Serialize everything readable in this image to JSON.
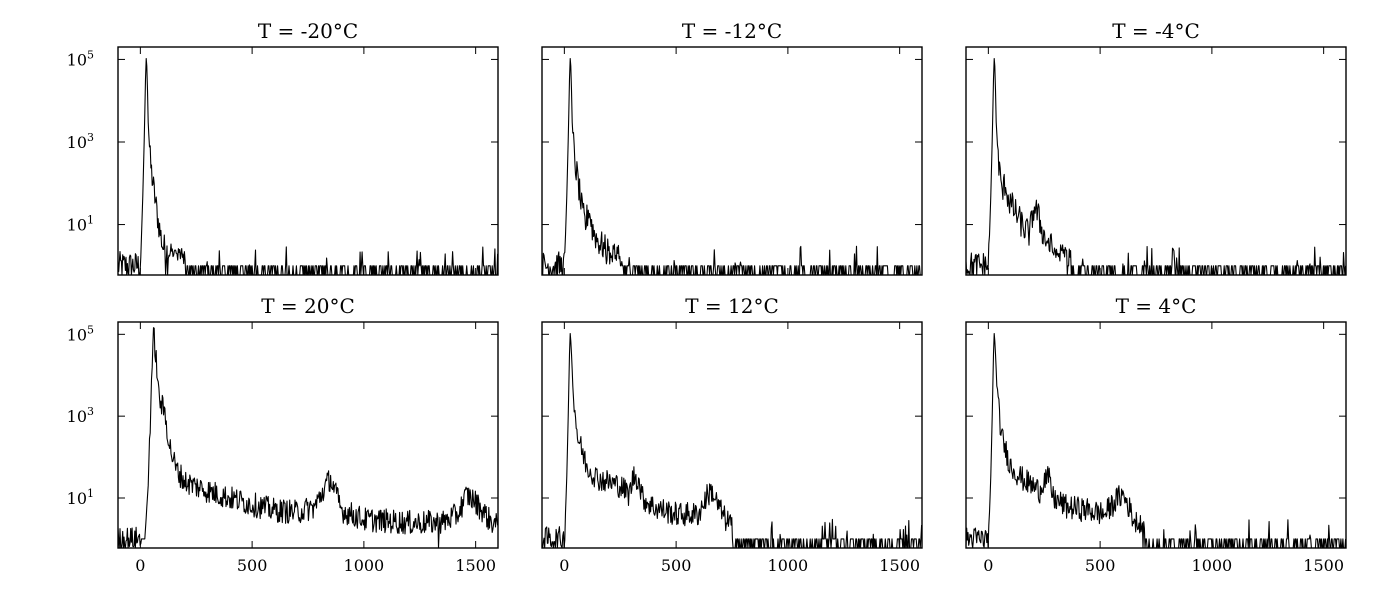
{
  "chart_data": [
    {
      "type": "line",
      "title": "T = -20°C",
      "xlabel": "",
      "ylabel": "",
      "xlim": [
        -100,
        1600
      ],
      "ylim": [
        0.6,
        200000
      ],
      "yscale": "log",
      "xticks": [
        0,
        500,
        1000,
        1500
      ],
      "yticks": [
        {
          "base": "10",
          "exp": "1",
          "value": 10
        },
        {
          "base": "10",
          "exp": "3",
          "value": 1000
        },
        {
          "base": "10",
          "exp": "5",
          "value": 100000
        }
      ],
      "show_xticklabels": false,
      "show_yticklabels": true,
      "series": [
        {
          "points": [
            [
              -100,
              1
            ],
            [
              0,
              1
            ],
            [
              10,
              30
            ],
            [
              20,
              5000
            ],
            [
              25,
              120000
            ],
            [
              30,
              60000
            ],
            [
              35,
              3000
            ],
            [
              45,
              300
            ],
            [
              60,
              70
            ],
            [
              80,
              12
            ],
            [
              100,
              3
            ],
            [
              130,
              2
            ],
            [
              180,
              1.5
            ],
            [
              250,
              1
            ],
            [
              400,
              1
            ],
            [
              600,
              1
            ],
            [
              800,
              1
            ],
            [
              1000,
              1
            ],
            [
              1200,
              1
            ],
            [
              1400,
              1
            ],
            [
              1600,
              1
            ]
          ],
          "noise": 0.35,
          "floor": 1,
          "sparse_after": 200
        }
      ]
    },
    {
      "type": "line",
      "title": "T = -12°C",
      "xlabel": "",
      "ylabel": "",
      "xlim": [
        -100,
        1600
      ],
      "ylim": [
        0.6,
        200000
      ],
      "yscale": "log",
      "xticks": [
        0,
        500,
        1000,
        1500
      ],
      "yticks": [
        {
          "base": "10",
          "exp": "1",
          "value": 10
        },
        {
          "base": "10",
          "exp": "3",
          "value": 1000
        },
        {
          "base": "10",
          "exp": "5",
          "value": 100000
        }
      ],
      "show_xticklabels": false,
      "show_yticklabels": false,
      "series": [
        {
          "points": [
            [
              -100,
              1
            ],
            [
              0,
              1
            ],
            [
              10,
              30
            ],
            [
              20,
              5000
            ],
            [
              25,
              120000
            ],
            [
              30,
              60000
            ],
            [
              35,
              3000
            ],
            [
              45,
              400
            ],
            [
              60,
              120
            ],
            [
              80,
              20
            ],
            [
              95,
              10
            ],
            [
              110,
              25
            ],
            [
              125,
              8
            ],
            [
              150,
              4
            ],
            [
              200,
              2
            ],
            [
              300,
              1.5
            ],
            [
              500,
              1
            ],
            [
              800,
              1
            ],
            [
              1000,
              1
            ],
            [
              1200,
              1
            ],
            [
              1600,
              1
            ]
          ],
          "noise": 0.35,
          "floor": 1,
          "sparse_after": 250
        }
      ]
    },
    {
      "type": "line",
      "title": "T = -4°C",
      "xlabel": "",
      "ylabel": "",
      "xlim": [
        -100,
        1600
      ],
      "ylim": [
        0.6,
        200000
      ],
      "yscale": "log",
      "xticks": [
        0,
        500,
        1000,
        1500
      ],
      "yticks": [
        {
          "base": "10",
          "exp": "1",
          "value": 10
        },
        {
          "base": "10",
          "exp": "3",
          "value": 1000
        },
        {
          "base": "10",
          "exp": "5",
          "value": 100000
        }
      ],
      "show_xticklabels": false,
      "show_yticklabels": false,
      "series": [
        {
          "points": [
            [
              -100,
              1
            ],
            [
              0,
              1
            ],
            [
              10,
              30
            ],
            [
              20,
              5000
            ],
            [
              25,
              120000
            ],
            [
              30,
              60000
            ],
            [
              35,
              3000
            ],
            [
              45,
              400
            ],
            [
              55,
              100
            ],
            [
              65,
              60
            ],
            [
              75,
              110
            ],
            [
              90,
              40
            ],
            [
              120,
              20
            ],
            [
              160,
              8
            ],
            [
              185,
              6
            ],
            [
              205,
              28
            ],
            [
              220,
              18
            ],
            [
              250,
              5
            ],
            [
              300,
              2
            ],
            [
              400,
              1.5
            ],
            [
              600,
              1
            ],
            [
              900,
              1
            ],
            [
              1200,
              1
            ],
            [
              1600,
              1
            ]
          ],
          "noise": 0.35,
          "floor": 1,
          "sparse_after": 350
        }
      ]
    },
    {
      "type": "line",
      "title": "T = 20°C",
      "xlabel": "",
      "ylabel": "",
      "xlim": [
        -100,
        1600
      ],
      "ylim": [
        0.6,
        200000
      ],
      "yscale": "log",
      "xticks": [
        0,
        500,
        1000,
        1500
      ],
      "yticks": [
        {
          "base": "10",
          "exp": "1",
          "value": 10
        },
        {
          "base": "10",
          "exp": "3",
          "value": 1000
        },
        {
          "base": "10",
          "exp": "5",
          "value": 100000
        }
      ],
      "show_xticklabels": true,
      "show_yticklabels": true,
      "series": [
        {
          "points": [
            [
              -100,
              1
            ],
            [
              20,
              1
            ],
            [
              35,
              20
            ],
            [
              50,
              8000
            ],
            [
              60,
              100000
            ],
            [
              70,
              30000
            ],
            [
              80,
              4000
            ],
            [
              95,
              1800
            ],
            [
              110,
              1200
            ],
            [
              130,
              200
            ],
            [
              160,
              50
            ],
            [
              200,
              25
            ],
            [
              300,
              15
            ],
            [
              400,
              10
            ],
            [
              500,
              7
            ],
            [
              600,
              5
            ],
            [
              700,
              4.5
            ],
            [
              780,
              6
            ],
            [
              830,
              20
            ],
            [
              850,
              30
            ],
            [
              870,
              15
            ],
            [
              900,
              5
            ],
            [
              1000,
              3
            ],
            [
              1200,
              2.5
            ],
            [
              1350,
              2.5
            ],
            [
              1420,
              4
            ],
            [
              1460,
              12
            ],
            [
              1490,
              9
            ],
            [
              1530,
              5
            ],
            [
              1560,
              3
            ],
            [
              1600,
              2
            ]
          ],
          "noise": 0.3,
          "floor": 1,
          "sparse_after": 2000
        }
      ]
    },
    {
      "type": "line",
      "title": "T = 12°C",
      "xlabel": "",
      "ylabel": "",
      "xlim": [
        -100,
        1600
      ],
      "ylim": [
        0.6,
        200000
      ],
      "yscale": "log",
      "xticks": [
        0,
        500,
        1000,
        1500
      ],
      "yticks": [
        {
          "base": "10",
          "exp": "1",
          "value": 10
        },
        {
          "base": "10",
          "exp": "3",
          "value": 1000
        },
        {
          "base": "10",
          "exp": "5",
          "value": 100000
        }
      ],
      "show_xticklabels": true,
      "show_yticklabels": false,
      "series": [
        {
          "points": [
            [
              -100,
              1
            ],
            [
              0,
              1
            ],
            [
              10,
              20
            ],
            [
              20,
              5000
            ],
            [
              25,
              120000
            ],
            [
              30,
              60000
            ],
            [
              40,
              3000
            ],
            [
              60,
              300
            ],
            [
              100,
              60
            ],
            [
              150,
              30
            ],
            [
              250,
              20
            ],
            [
              290,
              12
            ],
            [
              310,
              35
            ],
            [
              330,
              30
            ],
            [
              350,
              10
            ],
            [
              400,
              6
            ],
            [
              500,
              4
            ],
            [
              600,
              4
            ],
            [
              640,
              12
            ],
            [
              660,
              15
            ],
            [
              680,
              8
            ],
            [
              720,
              3
            ],
            [
              800,
              1.5
            ],
            [
              1000,
              1
            ],
            [
              1300,
              1
            ],
            [
              1600,
              1
            ]
          ],
          "noise": 0.3,
          "floor": 1,
          "sparse_after": 750
        }
      ]
    },
    {
      "type": "line",
      "title": "T = 4°C",
      "xlabel": "",
      "ylabel": "",
      "xlim": [
        -100,
        1600
      ],
      "ylim": [
        0.6,
        200000
      ],
      "yscale": "log",
      "xticks": [
        0,
        500,
        1000,
        1500
      ],
      "yticks": [
        {
          "base": "10",
          "exp": "1",
          "value": 10
        },
        {
          "base": "10",
          "exp": "3",
          "value": 1000
        },
        {
          "base": "10",
          "exp": "5",
          "value": 100000
        }
      ],
      "show_xticklabels": true,
      "show_yticklabels": false,
      "series": [
        {
          "points": [
            [
              -100,
              1
            ],
            [
              0,
              1
            ],
            [
              10,
              20
            ],
            [
              20,
              5000
            ],
            [
              25,
              120000
            ],
            [
              30,
              60000
            ],
            [
              40,
              3000
            ],
            [
              60,
              300
            ],
            [
              100,
              60
            ],
            [
              150,
              30
            ],
            [
              230,
              15
            ],
            [
              250,
              30
            ],
            [
              270,
              30
            ],
            [
              290,
              10
            ],
            [
              350,
              6
            ],
            [
              450,
              5
            ],
            [
              520,
              4
            ],
            [
              580,
              10
            ],
            [
              600,
              12
            ],
            [
              620,
              8
            ],
            [
              650,
              3
            ],
            [
              700,
              1.5
            ],
            [
              900,
              1
            ],
            [
              1200,
              1
            ],
            [
              1600,
              1
            ]
          ],
          "noise": 0.3,
          "floor": 1,
          "sparse_after": 700
        }
      ]
    }
  ]
}
